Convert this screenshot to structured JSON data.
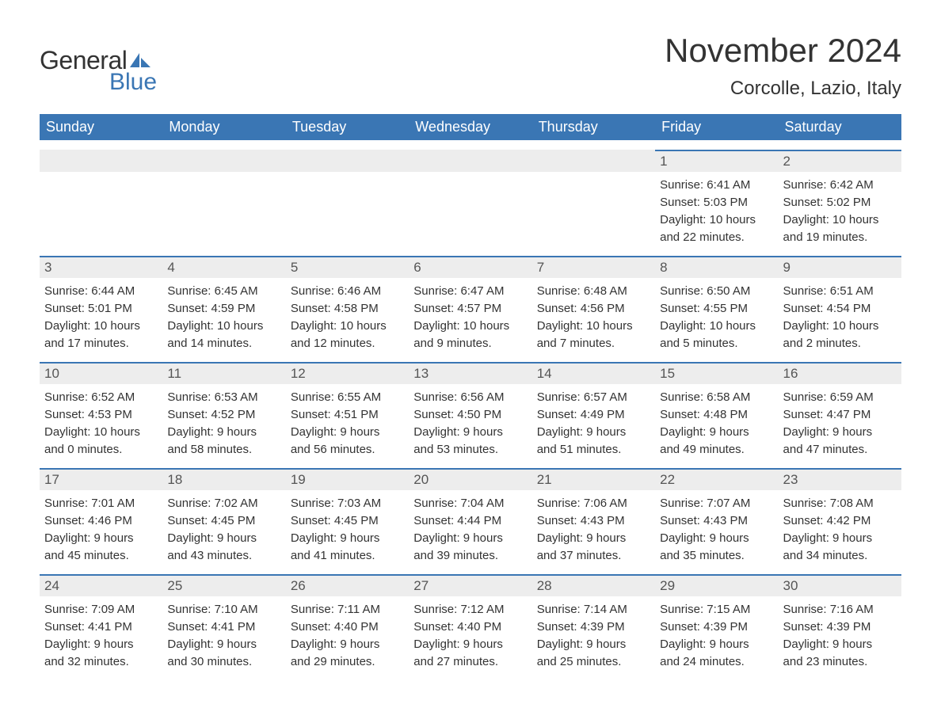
{
  "logo": {
    "text1": "General",
    "text2": "Blue",
    "icon_color": "#3a76b4"
  },
  "title": "November 2024",
  "location": "Corcolle, Lazio, Italy",
  "colors": {
    "header_bg": "#3a76b4",
    "header_fg": "#ffffff",
    "daybar_bg": "#ededed",
    "daybar_border": "#3a76b4",
    "text": "#333333"
  },
  "typography": {
    "title_fontsize": 42,
    "location_fontsize": 24,
    "dayheader_fontsize": 18,
    "cell_fontsize": 15
  },
  "day_headers": [
    "Sunday",
    "Monday",
    "Tuesday",
    "Wednesday",
    "Thursday",
    "Friday",
    "Saturday"
  ],
  "weeks": [
    [
      {
        "day": null
      },
      {
        "day": null
      },
      {
        "day": null
      },
      {
        "day": null
      },
      {
        "day": null
      },
      {
        "day": 1,
        "sunrise": "6:41 AM",
        "sunset": "5:03 PM",
        "daylight1": "Daylight: 10 hours",
        "daylight2": "and 22 minutes."
      },
      {
        "day": 2,
        "sunrise": "6:42 AM",
        "sunset": "5:02 PM",
        "daylight1": "Daylight: 10 hours",
        "daylight2": "and 19 minutes."
      }
    ],
    [
      {
        "day": 3,
        "sunrise": "6:44 AM",
        "sunset": "5:01 PM",
        "daylight1": "Daylight: 10 hours",
        "daylight2": "and 17 minutes."
      },
      {
        "day": 4,
        "sunrise": "6:45 AM",
        "sunset": "4:59 PM",
        "daylight1": "Daylight: 10 hours",
        "daylight2": "and 14 minutes."
      },
      {
        "day": 5,
        "sunrise": "6:46 AM",
        "sunset": "4:58 PM",
        "daylight1": "Daylight: 10 hours",
        "daylight2": "and 12 minutes."
      },
      {
        "day": 6,
        "sunrise": "6:47 AM",
        "sunset": "4:57 PM",
        "daylight1": "Daylight: 10 hours",
        "daylight2": "and 9 minutes."
      },
      {
        "day": 7,
        "sunrise": "6:48 AM",
        "sunset": "4:56 PM",
        "daylight1": "Daylight: 10 hours",
        "daylight2": "and 7 minutes."
      },
      {
        "day": 8,
        "sunrise": "6:50 AM",
        "sunset": "4:55 PM",
        "daylight1": "Daylight: 10 hours",
        "daylight2": "and 5 minutes."
      },
      {
        "day": 9,
        "sunrise": "6:51 AM",
        "sunset": "4:54 PM",
        "daylight1": "Daylight: 10 hours",
        "daylight2": "and 2 minutes."
      }
    ],
    [
      {
        "day": 10,
        "sunrise": "6:52 AM",
        "sunset": "4:53 PM",
        "daylight1": "Daylight: 10 hours",
        "daylight2": "and 0 minutes."
      },
      {
        "day": 11,
        "sunrise": "6:53 AM",
        "sunset": "4:52 PM",
        "daylight1": "Daylight: 9 hours",
        "daylight2": "and 58 minutes."
      },
      {
        "day": 12,
        "sunrise": "6:55 AM",
        "sunset": "4:51 PM",
        "daylight1": "Daylight: 9 hours",
        "daylight2": "and 56 minutes."
      },
      {
        "day": 13,
        "sunrise": "6:56 AM",
        "sunset": "4:50 PM",
        "daylight1": "Daylight: 9 hours",
        "daylight2": "and 53 minutes."
      },
      {
        "day": 14,
        "sunrise": "6:57 AM",
        "sunset": "4:49 PM",
        "daylight1": "Daylight: 9 hours",
        "daylight2": "and 51 minutes."
      },
      {
        "day": 15,
        "sunrise": "6:58 AM",
        "sunset": "4:48 PM",
        "daylight1": "Daylight: 9 hours",
        "daylight2": "and 49 minutes."
      },
      {
        "day": 16,
        "sunrise": "6:59 AM",
        "sunset": "4:47 PM",
        "daylight1": "Daylight: 9 hours",
        "daylight2": "and 47 minutes."
      }
    ],
    [
      {
        "day": 17,
        "sunrise": "7:01 AM",
        "sunset": "4:46 PM",
        "daylight1": "Daylight: 9 hours",
        "daylight2": "and 45 minutes."
      },
      {
        "day": 18,
        "sunrise": "7:02 AM",
        "sunset": "4:45 PM",
        "daylight1": "Daylight: 9 hours",
        "daylight2": "and 43 minutes."
      },
      {
        "day": 19,
        "sunrise": "7:03 AM",
        "sunset": "4:45 PM",
        "daylight1": "Daylight: 9 hours",
        "daylight2": "and 41 minutes."
      },
      {
        "day": 20,
        "sunrise": "7:04 AM",
        "sunset": "4:44 PM",
        "daylight1": "Daylight: 9 hours",
        "daylight2": "and 39 minutes."
      },
      {
        "day": 21,
        "sunrise": "7:06 AM",
        "sunset": "4:43 PM",
        "daylight1": "Daylight: 9 hours",
        "daylight2": "and 37 minutes."
      },
      {
        "day": 22,
        "sunrise": "7:07 AM",
        "sunset": "4:43 PM",
        "daylight1": "Daylight: 9 hours",
        "daylight2": "and 35 minutes."
      },
      {
        "day": 23,
        "sunrise": "7:08 AM",
        "sunset": "4:42 PM",
        "daylight1": "Daylight: 9 hours",
        "daylight2": "and 34 minutes."
      }
    ],
    [
      {
        "day": 24,
        "sunrise": "7:09 AM",
        "sunset": "4:41 PM",
        "daylight1": "Daylight: 9 hours",
        "daylight2": "and 32 minutes."
      },
      {
        "day": 25,
        "sunrise": "7:10 AM",
        "sunset": "4:41 PM",
        "daylight1": "Daylight: 9 hours",
        "daylight2": "and 30 minutes."
      },
      {
        "day": 26,
        "sunrise": "7:11 AM",
        "sunset": "4:40 PM",
        "daylight1": "Daylight: 9 hours",
        "daylight2": "and 29 minutes."
      },
      {
        "day": 27,
        "sunrise": "7:12 AM",
        "sunset": "4:40 PM",
        "daylight1": "Daylight: 9 hours",
        "daylight2": "and 27 minutes."
      },
      {
        "day": 28,
        "sunrise": "7:14 AM",
        "sunset": "4:39 PM",
        "daylight1": "Daylight: 9 hours",
        "daylight2": "and 25 minutes."
      },
      {
        "day": 29,
        "sunrise": "7:15 AM",
        "sunset": "4:39 PM",
        "daylight1": "Daylight: 9 hours",
        "daylight2": "and 24 minutes."
      },
      {
        "day": 30,
        "sunrise": "7:16 AM",
        "sunset": "4:39 PM",
        "daylight1": "Daylight: 9 hours",
        "daylight2": "and 23 minutes."
      }
    ]
  ]
}
